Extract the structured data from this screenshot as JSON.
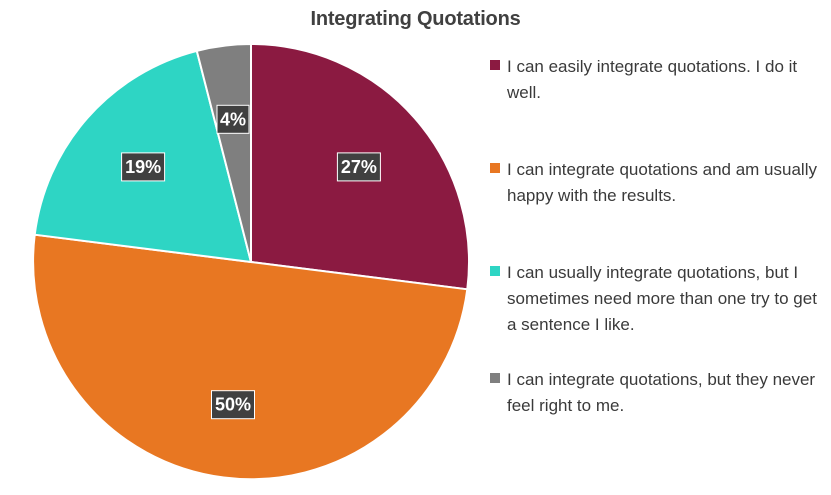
{
  "chart_data": {
    "type": "pie",
    "title": "Integrating Quotations",
    "legend_position": "right",
    "start_angle_deg": 0,
    "direction": "clockwise",
    "slices": [
      {
        "label": "I can easily integrate quotations. I do it well.",
        "value": 27,
        "display": "27%",
        "color": "#8B1A41"
      },
      {
        "label": "I can integrate quotations and am usually happy with the results.",
        "value": 50,
        "display": "50%",
        "color": "#E87722"
      },
      {
        "label": "I can usually integrate quotations, but I sometimes need more than one try to get a sentence I like.",
        "value": 19,
        "display": "19%",
        "color": "#2ED5C4"
      },
      {
        "label": "I can integrate quotations, but they never feel right to me.",
        "value": 4,
        "display": "4%",
        "color": "#7F7F7F"
      }
    ]
  }
}
